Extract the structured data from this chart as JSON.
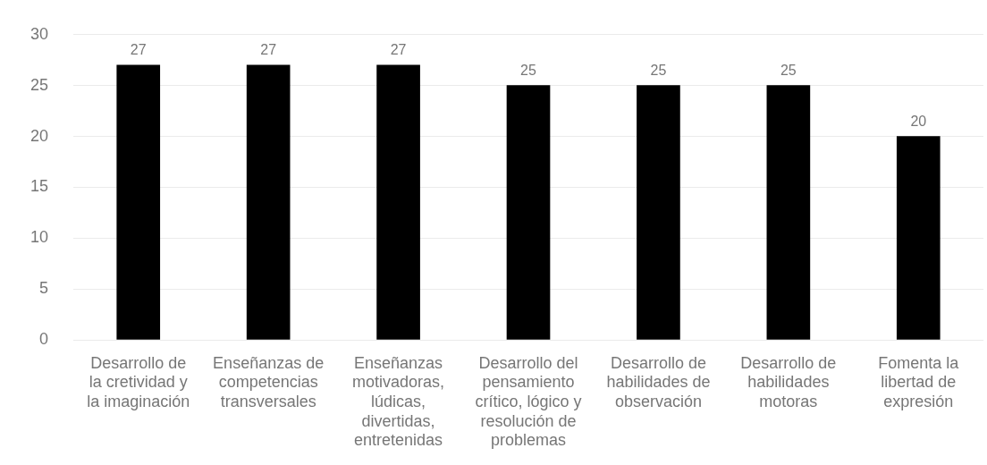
{
  "chart_data": {
    "type": "bar",
    "categories": [
      "Desarrollo de la cretividad y la imaginación",
      "Enseñanzas de competencias transversales",
      "Enseñanzas motivadoras, lúdicas, divertidas, entretenidas",
      "Desarrollo del pensamiento crítico, lógico y resolución de problemas",
      "Desarrollo de habilidades de observación",
      "Desarrollo de habilidades motoras",
      "Fomenta la libertad de expresión"
    ],
    "values": [
      27,
      27,
      27,
      25,
      25,
      25,
      20
    ],
    "color": "#000000",
    "ylim": [
      0,
      30
    ],
    "yticks": [
      0,
      5,
      10,
      15,
      20,
      25,
      30
    ],
    "grid": "y",
    "data_labels": true
  }
}
